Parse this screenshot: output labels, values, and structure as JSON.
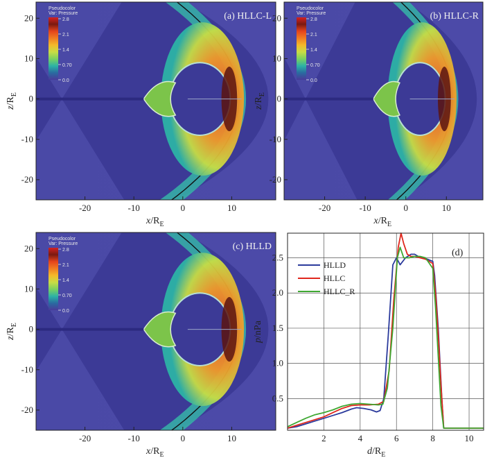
{
  "figure": {
    "colorbar": {
      "label_line1": "Pseudocolor",
      "label_line2": "Var: Pressure",
      "ticks": [
        "2.8",
        "2.1",
        "1.4",
        "0.70",
        "0.0"
      ],
      "colors": [
        "#d42222",
        "#7a1a10",
        "#e5441c",
        "#f07c22",
        "#f4b92a",
        "#c7dd45",
        "#7ad060",
        "#2cb2a6",
        "#2a6aa0",
        "#4a3a9a"
      ]
    },
    "field_panels": [
      {
        "id": "a",
        "title": "(a) HLLC-L"
      },
      {
        "id": "b",
        "title": "(b) HLLC-R"
      },
      {
        "id": "c",
        "title": "(c) HLLD"
      }
    ],
    "field_axes": {
      "x_ticks": [
        "-20",
        "-10",
        "0",
        "10"
      ],
      "x_tick_values": [
        -20,
        -10,
        0,
        10
      ],
      "z_ticks": [
        "20",
        "10",
        "0",
        "-10",
        "-20"
      ],
      "z_tick_values": [
        20,
        10,
        0,
        -10,
        -20
      ],
      "xlim": [
        -30,
        19
      ],
      "zlim": [
        -25,
        24
      ],
      "xlabel_main": "x",
      "xlabel_sub": "E",
      "zlabel_main": "z",
      "zlabel_sub": "E",
      "label_unit": "/R"
    }
  },
  "chart_data": {
    "type": "line",
    "panel_label": "(d)",
    "xlabel_main": "d",
    "xlabel_unit": "/R",
    "xlabel_sub": "E",
    "ylabel": "p/nPa",
    "xlim": [
      0,
      10.8
    ],
    "ylim": [
      0.05,
      2.85
    ],
    "x_ticks": [
      2,
      4,
      6,
      8,
      10
    ],
    "x_tick_labels": [
      "2",
      "4",
      "6",
      "8",
      "10"
    ],
    "y_ticks": [
      0.5,
      1.0,
      1.5,
      2.0,
      2.5
    ],
    "y_tick_labels": [
      "0.5",
      "1.0",
      "1.5",
      "2.0",
      "2.5"
    ],
    "grid": true,
    "legend_position": "top-left",
    "series": [
      {
        "name": "HLLD",
        "color": "#2b3a9c",
        "x": [
          0,
          0.5,
          1,
          1.5,
          2,
          2.5,
          3,
          3.5,
          3.8,
          4.2,
          4.6,
          4.9,
          5.1,
          5.3,
          5.55,
          5.8,
          6.0,
          6.2,
          6.5,
          6.8,
          7.0,
          7.2,
          7.5,
          8.0,
          8.1,
          8.3,
          8.5,
          8.6,
          9,
          10,
          10.8
        ],
        "y": [
          0.08,
          0.1,
          0.14,
          0.18,
          0.22,
          0.26,
          0.3,
          0.35,
          0.37,
          0.36,
          0.34,
          0.31,
          0.33,
          0.5,
          1.4,
          2.4,
          2.5,
          2.4,
          2.5,
          2.55,
          2.55,
          2.52,
          2.5,
          2.45,
          2.25,
          1.5,
          0.5,
          0.08,
          0.08,
          0.08,
          0.08
        ]
      },
      {
        "name": "HLLC",
        "color": "#e0261c",
        "x": [
          0,
          0.5,
          1,
          1.5,
          2,
          2.5,
          3,
          3.5,
          4,
          4.5,
          5,
          5.3,
          5.6,
          5.85,
          6.1,
          6.25,
          6.4,
          6.6,
          6.8,
          7.0,
          7.3,
          7.6,
          8.0,
          8.15,
          8.3,
          8.45,
          8.6,
          9,
          10,
          10.8
        ],
        "y": [
          0.08,
          0.12,
          0.16,
          0.2,
          0.24,
          0.3,
          0.36,
          0.4,
          0.41,
          0.41,
          0.42,
          0.46,
          0.9,
          1.9,
          2.65,
          2.85,
          2.7,
          2.55,
          2.52,
          2.52,
          2.5,
          2.48,
          2.42,
          2.0,
          1.4,
          0.7,
          0.08,
          0.08,
          0.08,
          0.08
        ]
      },
      {
        "name": "HLLC_R",
        "color": "#3ea832",
        "x": [
          0,
          0.5,
          1,
          1.5,
          2,
          2.5,
          3,
          3.5,
          4,
          4.5,
          5,
          5.25,
          5.5,
          5.8,
          6.05,
          6.2,
          6.4,
          6.7,
          7.0,
          7.3,
          7.6,
          8.0,
          8.15,
          8.3,
          8.45,
          8.6,
          9,
          10,
          10.8
        ],
        "y": [
          0.1,
          0.16,
          0.22,
          0.27,
          0.3,
          0.34,
          0.39,
          0.42,
          0.43,
          0.42,
          0.41,
          0.42,
          0.65,
          1.5,
          2.5,
          2.65,
          2.5,
          2.5,
          2.52,
          2.52,
          2.5,
          2.35,
          1.8,
          1.1,
          0.4,
          0.08,
          0.08,
          0.08,
          0.08
        ]
      }
    ]
  }
}
